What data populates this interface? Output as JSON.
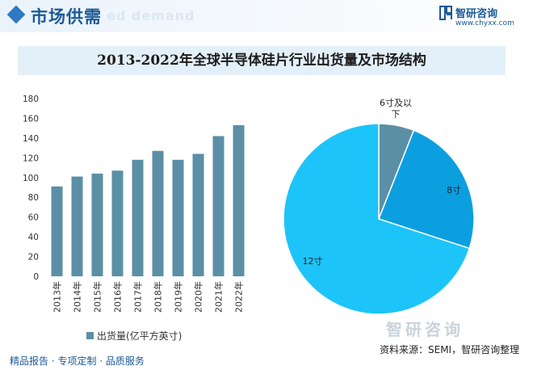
{
  "header": {
    "section_title": "市场供需",
    "section_watermark": "ed demand",
    "logo_name": "智研咨询",
    "logo_url": "www.chyxx.com"
  },
  "chart_data": [
    {
      "type": "bar",
      "title": "2013-2022年全球半导体硅片行业出货量及市场结构",
      "categories": [
        "2013年",
        "2014年",
        "2015年",
        "2016年",
        "2017年",
        "2018年",
        "2019年",
        "2020年",
        "2021年",
        "2022年"
      ],
      "series": [
        {
          "name": "出货量(亿平方英寸)",
          "values": [
            91,
            101,
            104,
            107,
            118,
            127,
            118,
            124,
            142,
            153
          ],
          "color": "#5b8fa6"
        }
      ],
      "y_ticks": [
        0,
        20,
        40,
        60,
        80,
        100,
        120,
        140,
        160,
        180
      ],
      "ylim": [
        0,
        180
      ],
      "legend": "bottom",
      "grid": false
    },
    {
      "type": "pie",
      "slices": [
        {
          "label": "6寸及以下",
          "value": 6,
          "color": "#5b8fa6"
        },
        {
          "label": "8寸",
          "value": 24,
          "color": "#0c9fe0"
        },
        {
          "label": "12寸",
          "value": 70,
          "color": "#1dc4f9"
        }
      ]
    }
  ],
  "footer": {
    "left": "精品报告 · 专项定制 · 品质服务",
    "source": "资料来源：SEMI，智研咨询整理",
    "watermark": "智研咨询"
  }
}
